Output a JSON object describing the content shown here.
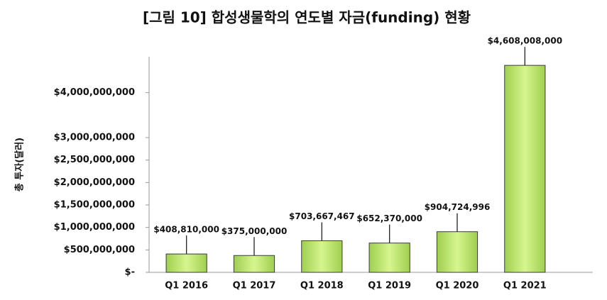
{
  "chart_data": {
    "type": "bar",
    "title": "[그림 10] 합성생물학의 연도별 자금(funding) 현황",
    "y_label": "총 투자(달러)",
    "categories": [
      "Q1  2016",
      "Q1  2017",
      "Q1  2018",
      "Q1  2019",
      "Q1  2020",
      "Q1  2021"
    ],
    "values": [
      408810000,
      375000000,
      703667467,
      652370000,
      904724996,
      4608008000
    ],
    "value_labels": [
      "$408,810,000",
      "$375,000,000",
      "$703,667,467",
      "$652,370,000",
      "$904,724,996",
      "$4,608,008,000"
    ],
    "color": "#b5e061",
    "ylim": [
      0,
      4800000000
    ],
    "yticks": [
      {
        "value": 0,
        "label": "$-"
      },
      {
        "value": 500000000,
        "label": "$500,000,000"
      },
      {
        "value": 1000000000,
        "label": "$1,000,000,000"
      },
      {
        "value": 1500000000,
        "label": "$1,500,000,000"
      },
      {
        "value": 2000000000,
        "label": "$2,000,000,000"
      },
      {
        "value": 2500000000,
        "label": "$2,500,000,000"
      },
      {
        "value": 3000000000,
        "label": "$3,000,000,000"
      },
      {
        "value": 4000000000,
        "label": "$4,000,000,000"
      }
    ],
    "grid": false
  }
}
